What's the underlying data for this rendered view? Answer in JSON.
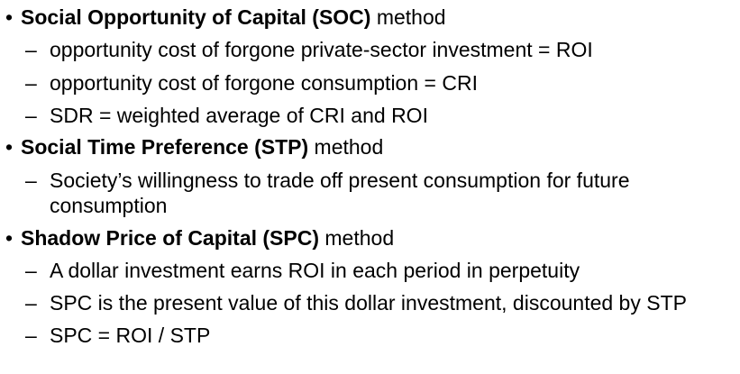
{
  "items": [
    {
      "bullet": "•",
      "bold": "Social Opportunity of Capital (SOC)",
      "rest": " method",
      "subs": [
        {
          "dash": "–",
          "text": "opportunity cost of forgone private-sector investment = ROI"
        },
        {
          "dash": "–",
          "text": "opportunity cost of forgone consumption = CRI"
        },
        {
          "dash": "–",
          "text": "SDR = weighted average of CRI and ROI"
        }
      ]
    },
    {
      "bullet": "•",
      "bold": "Social Time Preference (STP)",
      "rest": " method",
      "subs": [
        {
          "dash": "–",
          "text": "Society’s willingness to trade off present consumption for future",
          "text2": "consumption"
        }
      ]
    },
    {
      "bullet": "•",
      "bold": "Shadow Price of Capital (SPC)",
      "rest": " method",
      "subs": [
        {
          "dash": "–",
          "text": "A dollar investment earns ROI in each period in perpetuity"
        },
        {
          "dash": "–",
          "text": "SPC is the present value of this dollar investment, discounted by STP"
        },
        {
          "dash": "–",
          "text": "SPC = ROI / STP"
        }
      ]
    }
  ]
}
